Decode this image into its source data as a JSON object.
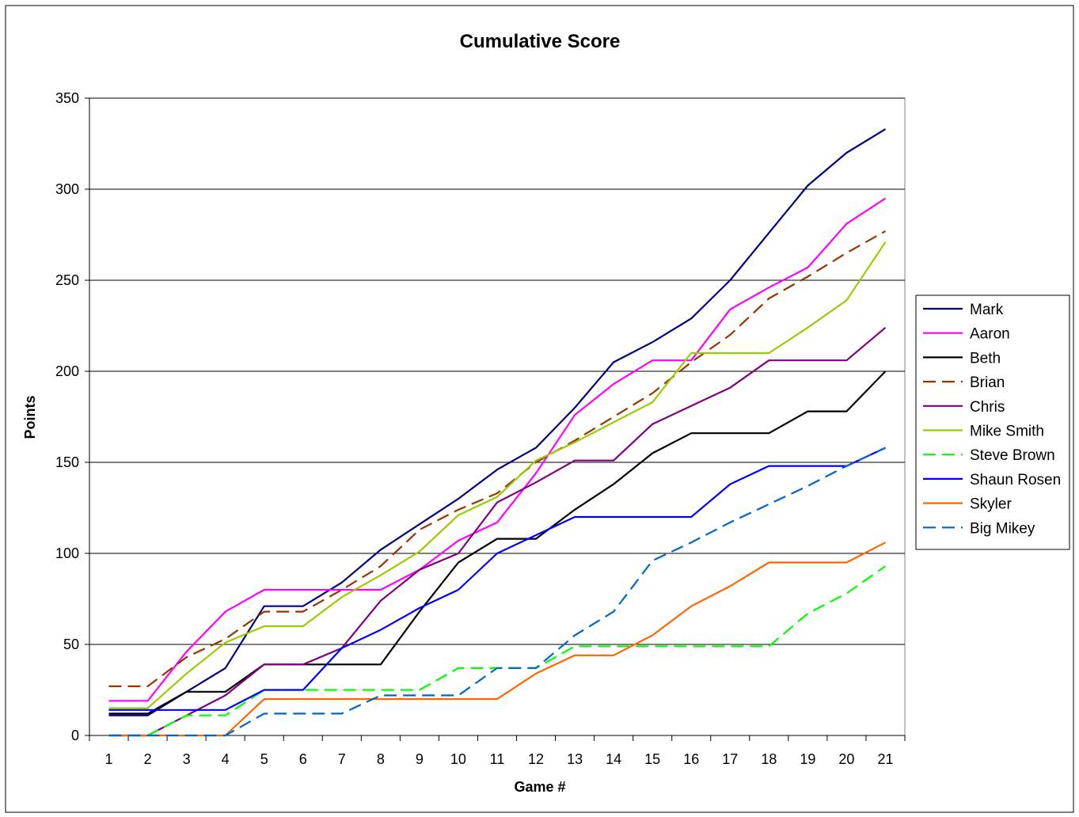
{
  "chart_data": {
    "type": "line",
    "title": "Cumulative Score",
    "xlabel": "Game #",
    "ylabel": "Points",
    "x": [
      1,
      2,
      3,
      4,
      5,
      6,
      7,
      8,
      9,
      10,
      11,
      12,
      13,
      14,
      15,
      16,
      17,
      18,
      19,
      20,
      21
    ],
    "ylim": [
      0,
      350
    ],
    "yticks": [
      0,
      50,
      100,
      150,
      200,
      250,
      300,
      350
    ],
    "grid": "horizontal major gridlines",
    "legend_position": "right",
    "series": [
      {
        "name": "Mark",
        "color": "#000080",
        "dash": "solid",
        "values": [
          11,
          11,
          24,
          37,
          71,
          71,
          84,
          102,
          116,
          130,
          146,
          158,
          180,
          205,
          216,
          229,
          250,
          276,
          302,
          320,
          333
        ]
      },
      {
        "name": "Aaron",
        "color": "#FF00FF",
        "dash": "solid",
        "values": [
          19,
          19,
          46,
          68,
          80,
          80,
          80,
          80,
          91,
          107,
          117,
          144,
          176,
          193,
          206,
          206,
          234,
          246,
          257,
          281,
          295
        ]
      },
      {
        "name": "Beth",
        "color": "#000000",
        "dash": "solid",
        "values": [
          12,
          12,
          24,
          24,
          39,
          39,
          39,
          39,
          68,
          95,
          108,
          108,
          124,
          138,
          155,
          166,
          166,
          166,
          178,
          178,
          200
        ]
      },
      {
        "name": "Brian",
        "color": "#993300",
        "dash": "dashed",
        "values": [
          27,
          27,
          43,
          53,
          68,
          68,
          80,
          93,
          113,
          124,
          133,
          150,
          162,
          175,
          188,
          205,
          220,
          240,
          252,
          265,
          277
        ]
      },
      {
        "name": "Chris",
        "color": "#800080",
        "dash": "solid",
        "values": [
          0,
          0,
          11,
          22,
          39,
          39,
          48,
          74,
          91,
          100,
          128,
          139,
          151,
          151,
          171,
          181,
          191,
          206,
          206,
          206,
          224
        ]
      },
      {
        "name": "Mike Smith",
        "color": "#99CC00",
        "dash": "solid",
        "values": [
          15,
          15,
          34,
          51,
          60,
          60,
          76,
          88,
          101,
          121,
          131,
          151,
          161,
          172,
          183,
          210,
          210,
          210,
          224,
          239,
          271
        ]
      },
      {
        "name": "Steve Brown",
        "color": "#00FF00",
        "dash": "dashed",
        "values": [
          0,
          0,
          11,
          11,
          25,
          25,
          25,
          25,
          25,
          37,
          37,
          37,
          49,
          49,
          49,
          49,
          49,
          49,
          67,
          78,
          93
        ]
      },
      {
        "name": "Shaun Rosen",
        "color": "#0000FF",
        "dash": "solid",
        "values": [
          14,
          14,
          14,
          14,
          25,
          25,
          48,
          58,
          70,
          80,
          100,
          110,
          120,
          120,
          120,
          120,
          138,
          148,
          148,
          148,
          158
        ]
      },
      {
        "name": "Skyler",
        "color": "#FF6600",
        "dash": "solid",
        "values": [
          0,
          0,
          0,
          0,
          20,
          20,
          20,
          20,
          20,
          20,
          20,
          34,
          44,
          44,
          55,
          71,
          82,
          95,
          95,
          95,
          106
        ]
      },
      {
        "name": "Big Mikey",
        "color": "#0066CC",
        "dash": "dashed",
        "values": [
          0,
          0,
          0,
          0,
          12,
          12,
          12,
          22,
          22,
          22,
          37,
          37,
          55,
          68,
          96,
          106,
          117,
          127,
          137,
          148,
          158
        ]
      }
    ]
  }
}
